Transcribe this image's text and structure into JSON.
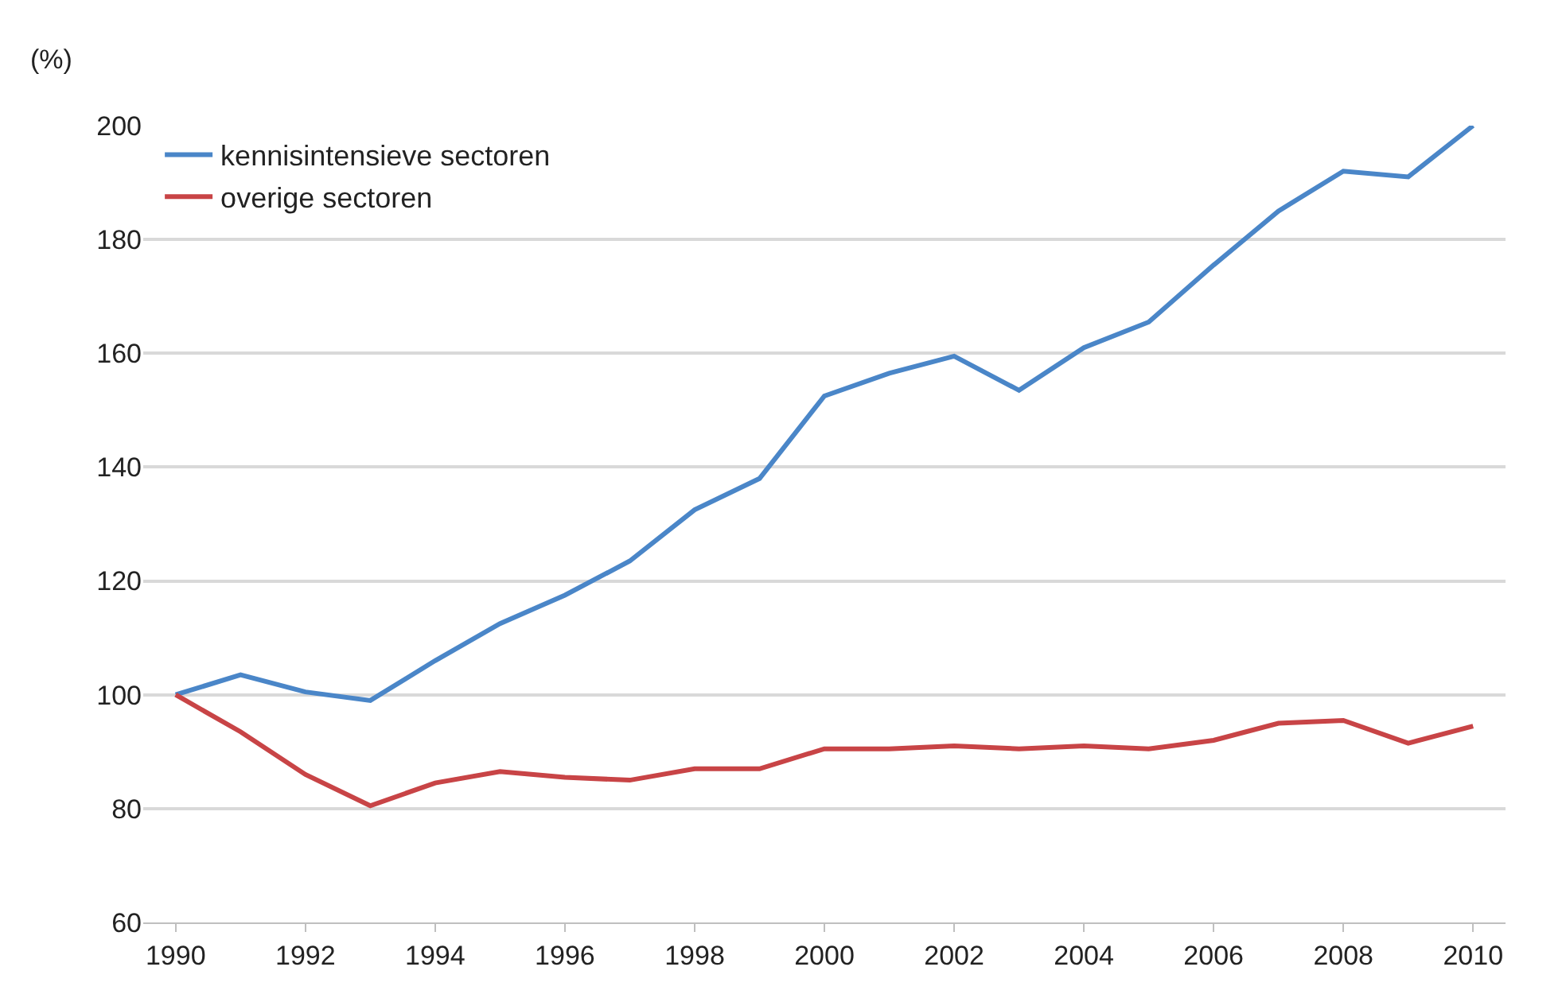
{
  "chart_data": {
    "type": "line",
    "ylabel": "(%)",
    "x": [
      1990,
      1991,
      1992,
      1993,
      1994,
      1995,
      1996,
      1997,
      1998,
      1999,
      2000,
      2001,
      2002,
      2003,
      2004,
      2005,
      2006,
      2007,
      2008,
      2009,
      2010
    ],
    "series": [
      {
        "name": "kennisintensieve sectoren",
        "color": "#4a86c8",
        "values": [
          100,
          103.5,
          100.5,
          99,
          106,
          112.5,
          117.5,
          123.5,
          132.5,
          138,
          152.5,
          156.5,
          159.5,
          153.5,
          161,
          165.5,
          175.5,
          185,
          192,
          191,
          200
        ]
      },
      {
        "name": "overige sectoren",
        "color": "#c84446",
        "values": [
          100,
          93.5,
          86,
          80.5,
          84.5,
          86.5,
          85.5,
          85,
          87,
          87,
          90.5,
          90.5,
          91,
          90.5,
          91,
          90.5,
          92,
          95,
          95.5,
          91.5,
          94.5
        ]
      }
    ],
    "xlim": [
      1989.5,
      2010.5
    ],
    "xticks": [
      1990,
      1992,
      1994,
      1996,
      1998,
      2000,
      2002,
      2004,
      2006,
      2008,
      2010
    ],
    "ylim": [
      60,
      200
    ],
    "yticks": [
      60,
      80,
      100,
      120,
      140,
      160,
      180,
      200
    ],
    "grid": "y",
    "legend": "top left",
    "marker": "none",
    "line_style": "solid"
  }
}
